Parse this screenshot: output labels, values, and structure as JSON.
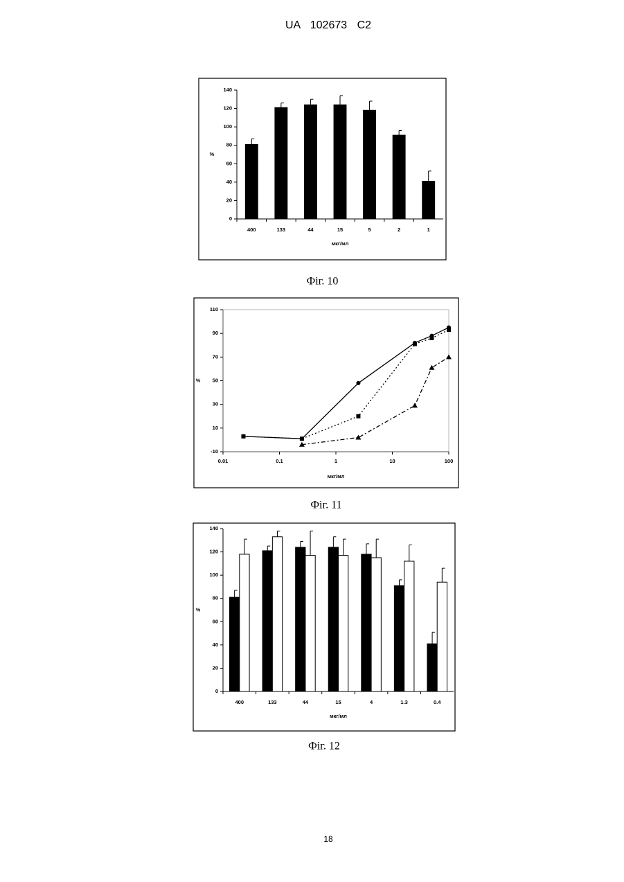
{
  "header": "UA 102673 C2",
  "page_number": "18",
  "chart_data": [
    {
      "type": "bar",
      "caption": "Фіг. 10",
      "ylabel": "%",
      "xlabel": "мкг/мл",
      "categories": [
        "400",
        "133",
        "44",
        "15",
        "5",
        "2",
        "1"
      ],
      "values": [
        81,
        121,
        124,
        124,
        118,
        91,
        41
      ],
      "errors": [
        6,
        5,
        6,
        10,
        10,
        5,
        11
      ],
      "color": "#000000",
      "ylim": [
        0,
        140
      ],
      "yticks": [
        0,
        20,
        40,
        60,
        80,
        100,
        120,
        140
      ]
    },
    {
      "type": "line",
      "caption": "Фіг. 11",
      "ylabel": "%",
      "xlabel": "мкг/мл",
      "x": [
        0.023,
        0.25,
        2.5,
        25,
        50,
        100
      ],
      "log_x": true,
      "series": [
        {
          "color": "#000000",
          "line_style": "solid",
          "marker": "circle",
          "values": [
            3,
            1,
            48,
            82,
            88,
            95
          ]
        },
        {
          "color": "#000000",
          "line_style": "dotted",
          "marker": "square",
          "values": [
            3,
            1,
            20,
            81,
            86,
            93
          ]
        },
        {
          "color": "#000000",
          "line_style": "dashdot",
          "marker": "triangle",
          "values": [
            null,
            -4,
            2,
            29,
            61,
            70
          ]
        }
      ],
      "xlim": [
        0.01,
        100
      ],
      "xticks": [
        0.01,
        0.1,
        1,
        10,
        100
      ],
      "ylim": [
        -10,
        110
      ],
      "yticks": [
        -10,
        10,
        30,
        50,
        70,
        90,
        110
      ]
    },
    {
      "type": "bar",
      "caption": "Фіг. 12",
      "ylabel": "%",
      "xlabel": "мкг/мл",
      "categories": [
        "400",
        "133",
        "44",
        "15",
        "4",
        "1.3",
        "0.4"
      ],
      "series": [
        {
          "color": "#000000",
          "values": [
            81,
            121,
            124,
            124,
            118,
            91,
            41
          ],
          "errors": [
            6,
            4,
            5,
            9,
            9,
            5,
            10
          ]
        },
        {
          "color": "#ffffff",
          "values": [
            118,
            133,
            117,
            117,
            115,
            112,
            94
          ],
          "errors": [
            13,
            5,
            21,
            14,
            16,
            14,
            12
          ]
        }
      ],
      "ylim": [
        0,
        140
      ],
      "yticks": [
        0,
        20,
        40,
        60,
        80,
        100,
        120,
        140
      ]
    }
  ]
}
